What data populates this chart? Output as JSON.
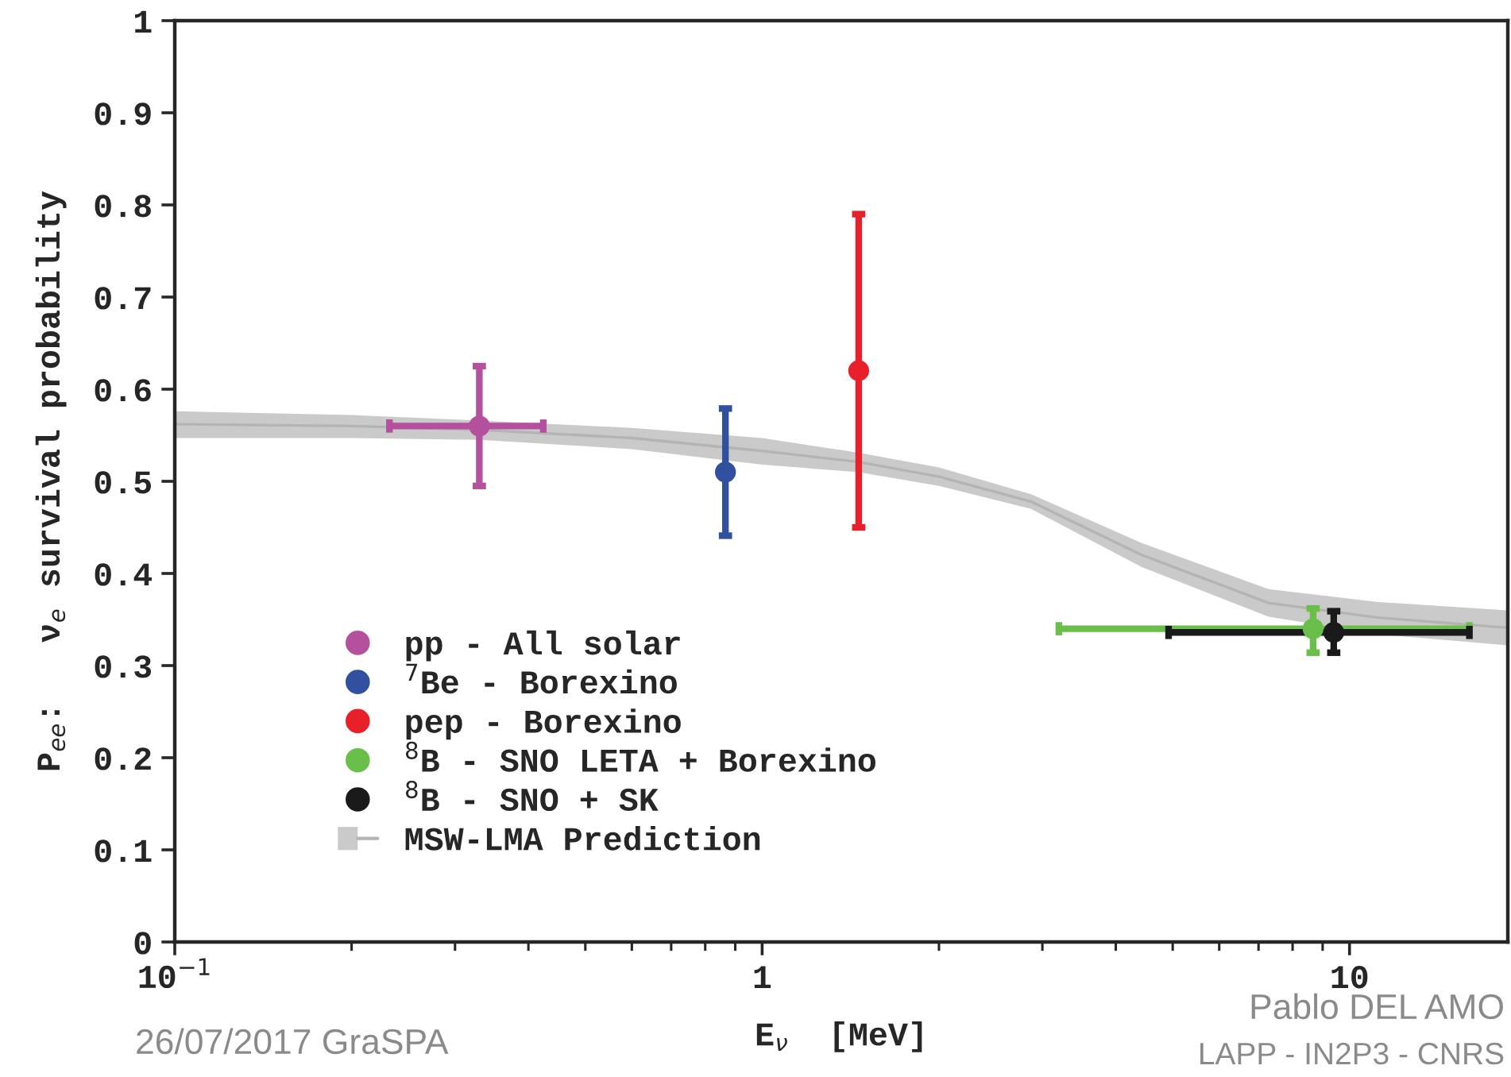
{
  "chart_data": {
    "type": "scatter",
    "xlabel": "E$_{ν}$  [MeV]",
    "ylabel": "P$_{ee}$:   ν$_{e}$ survival probability",
    "log": "x",
    "xlim": [
      0.1,
      18.6
    ],
    "xticks": [
      {
        "value": 0.1,
        "label": "10$^{−1}$"
      },
      1,
      10
    ],
    "ylim": [
      0,
      1
    ],
    "yticks": [
      0,
      0.1,
      0.2,
      0.3,
      0.4,
      0.5,
      0.6,
      0.7,
      0.8,
      0.9,
      1
    ],
    "grid": false,
    "legend": "bottom left",
    "marker": "circle",
    "series": [
      {
        "name": "pp - All solar",
        "color": "#b5509f",
        "x": [
          0.33
        ],
        "values": [
          0.56
        ],
        "errors": [
          [
            0.495,
            0.625
          ]
        ],
        "xerrors": [
          [
            0.232,
            0.424
          ]
        ]
      },
      {
        "name": "$^{7}$Be - Borexino",
        "color": "#3150a0",
        "x": [
          0.866
        ],
        "values": [
          0.51
        ],
        "errors": [
          [
            0.441,
            0.579
          ]
        ]
      },
      {
        "name": "pep - Borexino",
        "color": "#e8202a",
        "x": [
          1.46
        ],
        "values": [
          0.62
        ],
        "errors": [
          [
            0.45,
            0.79
          ]
        ]
      },
      {
        "name": "$^{8}$B - SNO LETA + Borexino",
        "color": "#6abf4b",
        "x": [
          8.67
        ],
        "values": [
          0.34
        ],
        "errors": [
          [
            0.314,
            0.362
          ]
        ],
        "xerrors": [
          [
            3.2,
            16.0
          ]
        ]
      },
      {
        "name": "$^{8}$B - SNO + SK",
        "color": "#1a1a1a",
        "x": [
          9.4
        ],
        "values": [
          0.336
        ],
        "errors": [
          [
            0.314,
            0.359
          ]
        ],
        "xerrors": [
          [
            4.92,
            16.0
          ]
        ]
      },
      {
        "name": "MSW-LMA Prediction",
        "type": "line",
        "marker": "none",
        "color": "#b4b4b4",
        "x": [
          0.1,
          0.2,
          0.33,
          0.6,
          1.0,
          1.46,
          2.0,
          2.87,
          4.43,
          7.28,
          11.2,
          18.6
        ],
        "values": [
          0.562,
          0.56,
          0.556,
          0.547,
          0.533,
          0.521,
          0.505,
          0.478,
          0.42,
          0.368,
          0.352,
          0.341
        ],
        "lower": [
          0.547,
          0.547,
          0.545,
          0.535,
          0.518,
          0.51,
          0.495,
          0.47,
          0.407,
          0.353,
          0.334,
          0.322
        ],
        "upper": [
          0.576,
          0.572,
          0.566,
          0.558,
          0.547,
          0.531,
          0.515,
          0.486,
          0.433,
          0.383,
          0.369,
          0.36
        ]
      }
    ],
    "annotations": [
      "26/07/2017 GraSPA",
      "Pablo DEL AMO",
      "LAPP - IN2P3 - CNRS"
    ]
  }
}
